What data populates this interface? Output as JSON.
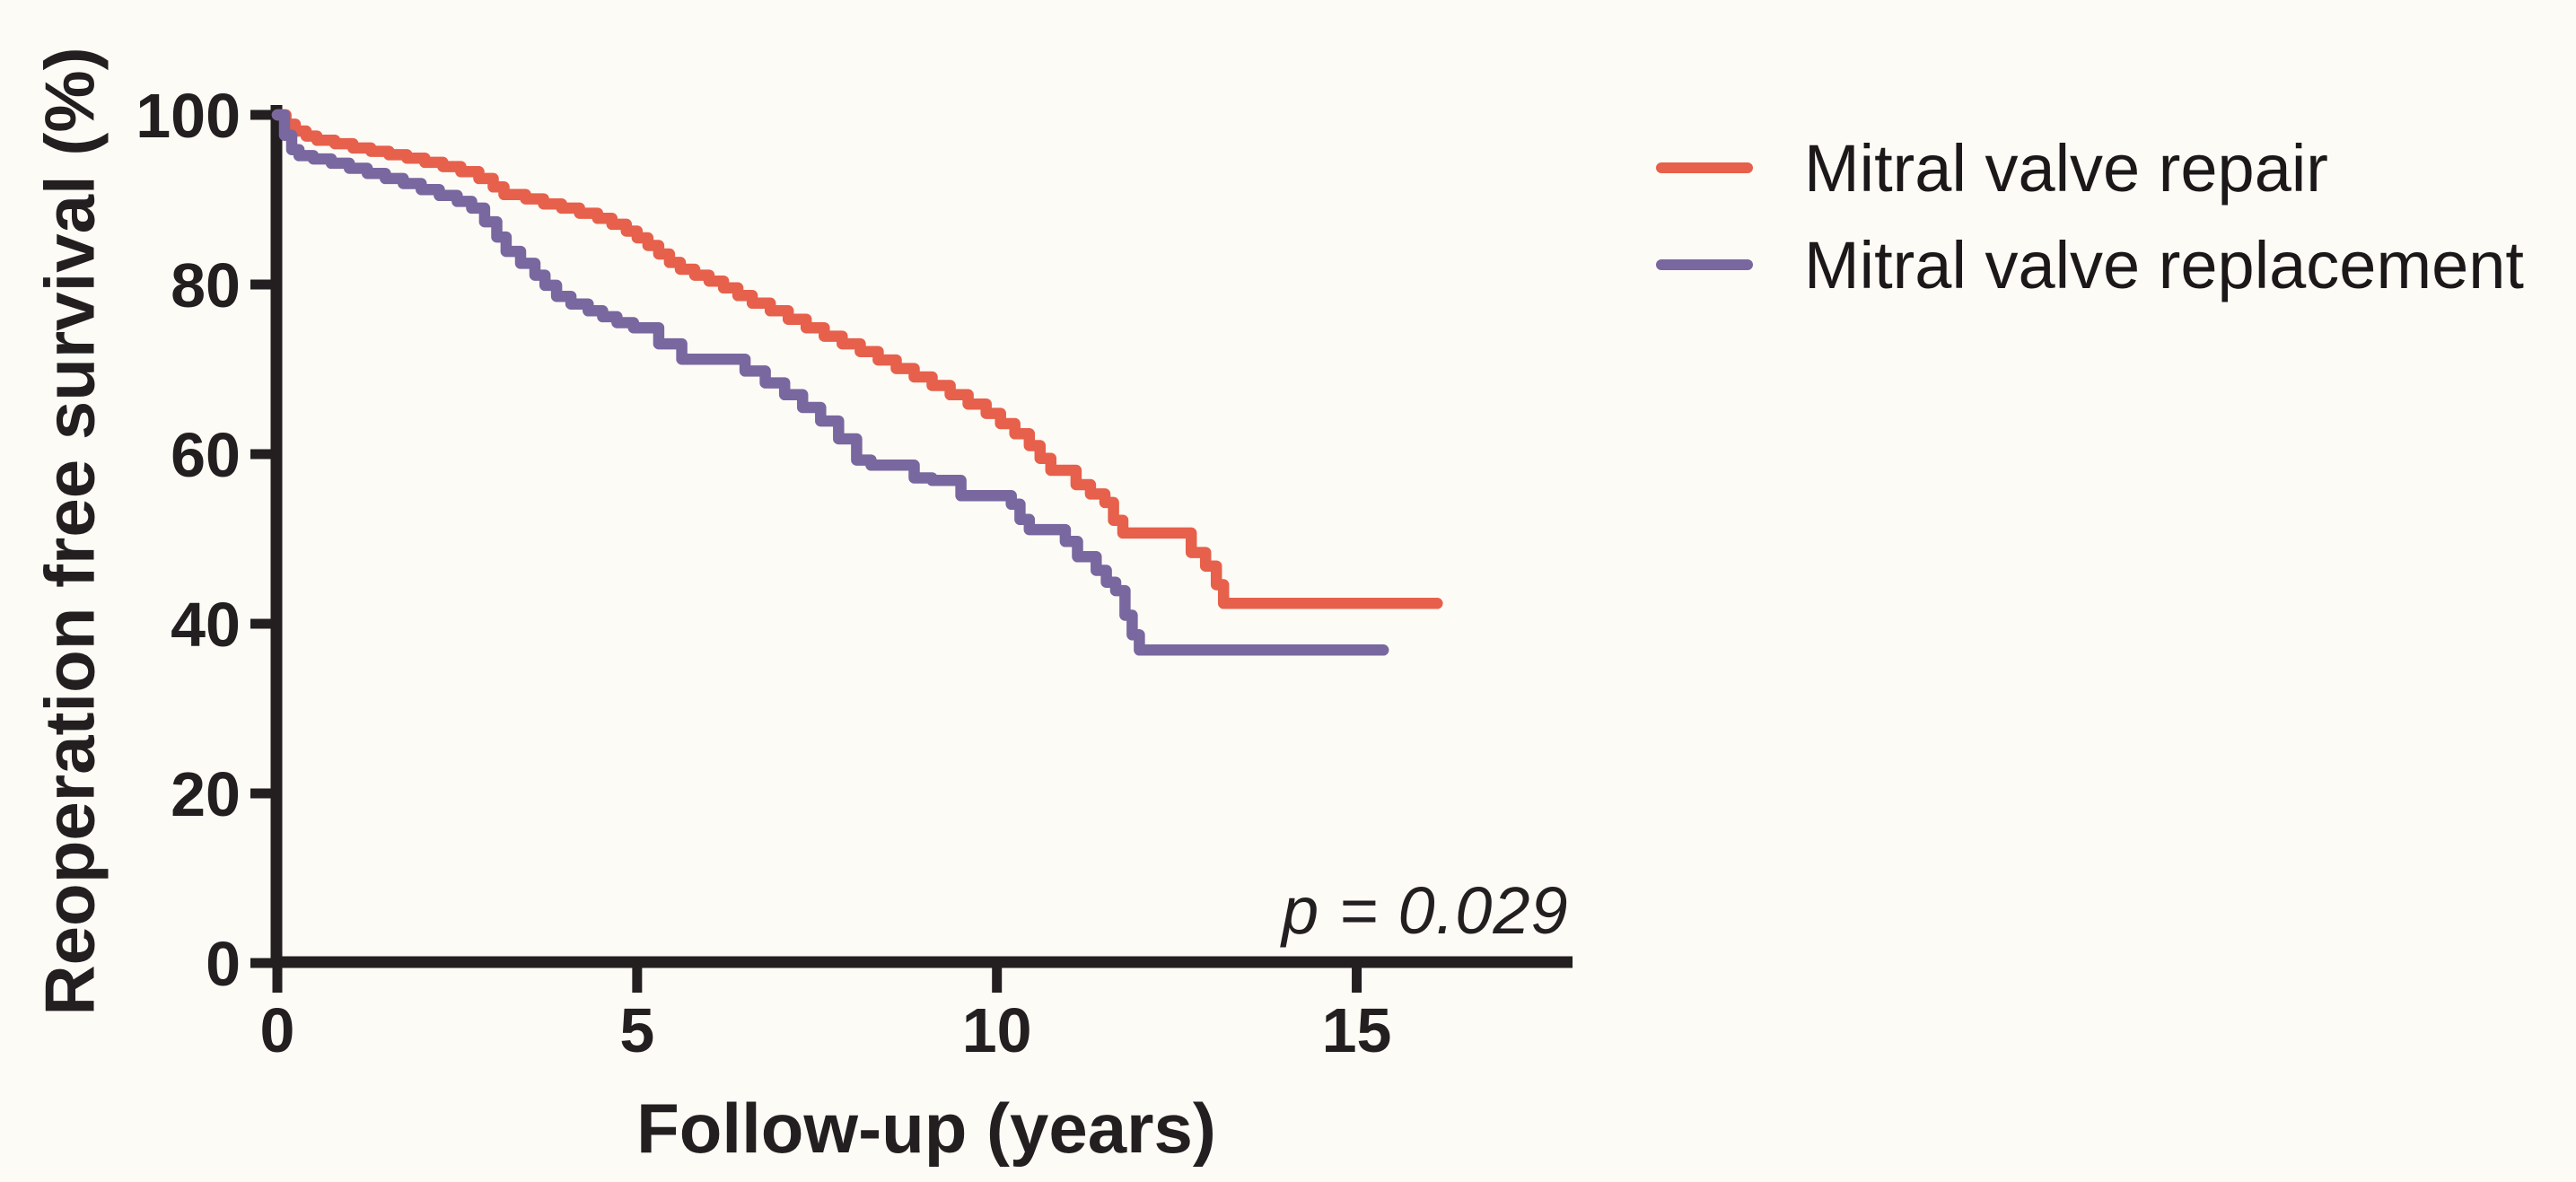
{
  "figure": {
    "background": "#fdfbf6",
    "ink_color": "#231f20"
  },
  "chart_data": {
    "type": "line",
    "subtype": "kaplan-meier-step",
    "title": "",
    "xlabel": "Follow-up (years)",
    "ylabel": "Reoperation free survival (%)",
    "annotation": "p = 0.029",
    "xlim": [
      0,
      18
    ],
    "ylim": [
      0,
      100
    ],
    "x_ticks": [
      "0",
      "5",
      "10",
      "15"
    ],
    "x_tick_values": [
      0,
      5,
      10,
      15
    ],
    "y_ticks": [
      "100",
      "80",
      "60",
      "40",
      "20",
      "0"
    ],
    "y_tick_values": [
      100,
      80,
      60,
      40,
      20,
      0
    ],
    "grid": false,
    "legend_position": "upper-right-outside",
    "series": [
      {
        "name": "Mitral valve repair",
        "color": "#e6604b",
        "end_year": 16.12,
        "step_points": [
          [
            0,
            100
          ],
          [
            0.12,
            98.9
          ],
          [
            0.25,
            98.1
          ],
          [
            0.4,
            97.5
          ],
          [
            0.55,
            97.0
          ],
          [
            0.8,
            96.6
          ],
          [
            1.05,
            96.1
          ],
          [
            1.3,
            95.7
          ],
          [
            1.55,
            95.3
          ],
          [
            1.8,
            94.9
          ],
          [
            2.05,
            94.4
          ],
          [
            2.3,
            93.9
          ],
          [
            2.55,
            93.3
          ],
          [
            2.8,
            92.5
          ],
          [
            3.0,
            91.5
          ],
          [
            3.15,
            90.6
          ],
          [
            3.45,
            90.1
          ],
          [
            3.7,
            89.5
          ],
          [
            3.95,
            89.0
          ],
          [
            4.2,
            88.4
          ],
          [
            4.45,
            87.8
          ],
          [
            4.65,
            87.1
          ],
          [
            4.85,
            86.3
          ],
          [
            5.0,
            85.5
          ],
          [
            5.15,
            84.6
          ],
          [
            5.3,
            83.6
          ],
          [
            5.45,
            82.6
          ],
          [
            5.6,
            81.8
          ],
          [
            5.8,
            81.1
          ],
          [
            6.0,
            80.4
          ],
          [
            6.2,
            79.6
          ],
          [
            6.4,
            78.7
          ],
          [
            6.6,
            77.8
          ],
          [
            6.85,
            76.9
          ],
          [
            7.1,
            75.9
          ],
          [
            7.35,
            74.9
          ],
          [
            7.6,
            73.9
          ],
          [
            7.85,
            73.0
          ],
          [
            8.1,
            72.1
          ],
          [
            8.35,
            71.1
          ],
          [
            8.6,
            70.1
          ],
          [
            8.85,
            69.1
          ],
          [
            9.1,
            68.1
          ],
          [
            9.35,
            67.0
          ],
          [
            9.6,
            65.9
          ],
          [
            9.85,
            64.8
          ],
          [
            10.05,
            63.6
          ],
          [
            10.25,
            62.4
          ],
          [
            10.45,
            61.0
          ],
          [
            10.6,
            59.5
          ],
          [
            10.75,
            58.1
          ],
          [
            11.1,
            56.4
          ],
          [
            11.3,
            55.3
          ],
          [
            11.5,
            54.3
          ],
          [
            11.62,
            52.2
          ],
          [
            11.75,
            50.7
          ],
          [
            12.7,
            48.4
          ],
          [
            12.9,
            46.8
          ],
          [
            13.05,
            44.6
          ],
          [
            13.15,
            42.4
          ],
          [
            16.12,
            42.4
          ]
        ]
      },
      {
        "name": "Mitral valve replacement",
        "color": "#79679f",
        "end_year": 15.37,
        "step_points": [
          [
            0,
            100
          ],
          [
            0.1,
            97.6
          ],
          [
            0.2,
            95.9
          ],
          [
            0.3,
            95.2
          ],
          [
            0.5,
            94.8
          ],
          [
            0.75,
            94.3
          ],
          [
            1.0,
            93.7
          ],
          [
            1.25,
            93.1
          ],
          [
            1.5,
            92.5
          ],
          [
            1.75,
            91.9
          ],
          [
            2.0,
            91.2
          ],
          [
            2.25,
            90.5
          ],
          [
            2.5,
            89.8
          ],
          [
            2.7,
            89.0
          ],
          [
            2.88,
            87.4
          ],
          [
            3.05,
            85.6
          ],
          [
            3.18,
            83.9
          ],
          [
            3.38,
            82.5
          ],
          [
            3.58,
            81.1
          ],
          [
            3.72,
            79.9
          ],
          [
            3.88,
            78.6
          ],
          [
            4.08,
            77.7
          ],
          [
            4.32,
            76.9
          ],
          [
            4.52,
            76.2
          ],
          [
            4.72,
            75.5
          ],
          [
            4.95,
            74.9
          ],
          [
            5.3,
            73.0
          ],
          [
            5.62,
            71.2
          ],
          [
            6.5,
            69.8
          ],
          [
            6.78,
            68.4
          ],
          [
            7.05,
            67.0
          ],
          [
            7.3,
            65.5
          ],
          [
            7.55,
            63.9
          ],
          [
            7.8,
            61.8
          ],
          [
            8.05,
            59.3
          ],
          [
            8.25,
            58.7
          ],
          [
            8.85,
            57.2
          ],
          [
            9.1,
            56.9
          ],
          [
            9.5,
            55.1
          ],
          [
            10.2,
            54.1
          ],
          [
            10.32,
            52.3
          ],
          [
            10.45,
            51.1
          ],
          [
            10.95,
            49.7
          ],
          [
            11.12,
            47.9
          ],
          [
            11.38,
            46.3
          ],
          [
            11.52,
            44.9
          ],
          [
            11.65,
            43.9
          ],
          [
            11.78,
            41.0
          ],
          [
            11.88,
            38.7
          ],
          [
            11.98,
            36.9
          ],
          [
            15.37,
            36.9
          ]
        ]
      }
    ]
  },
  "legend": {
    "items": [
      {
        "label": "Mitral valve repair",
        "color": "#e6604b"
      },
      {
        "label": "Mitral valve replacement",
        "color": "#79679f"
      }
    ]
  }
}
